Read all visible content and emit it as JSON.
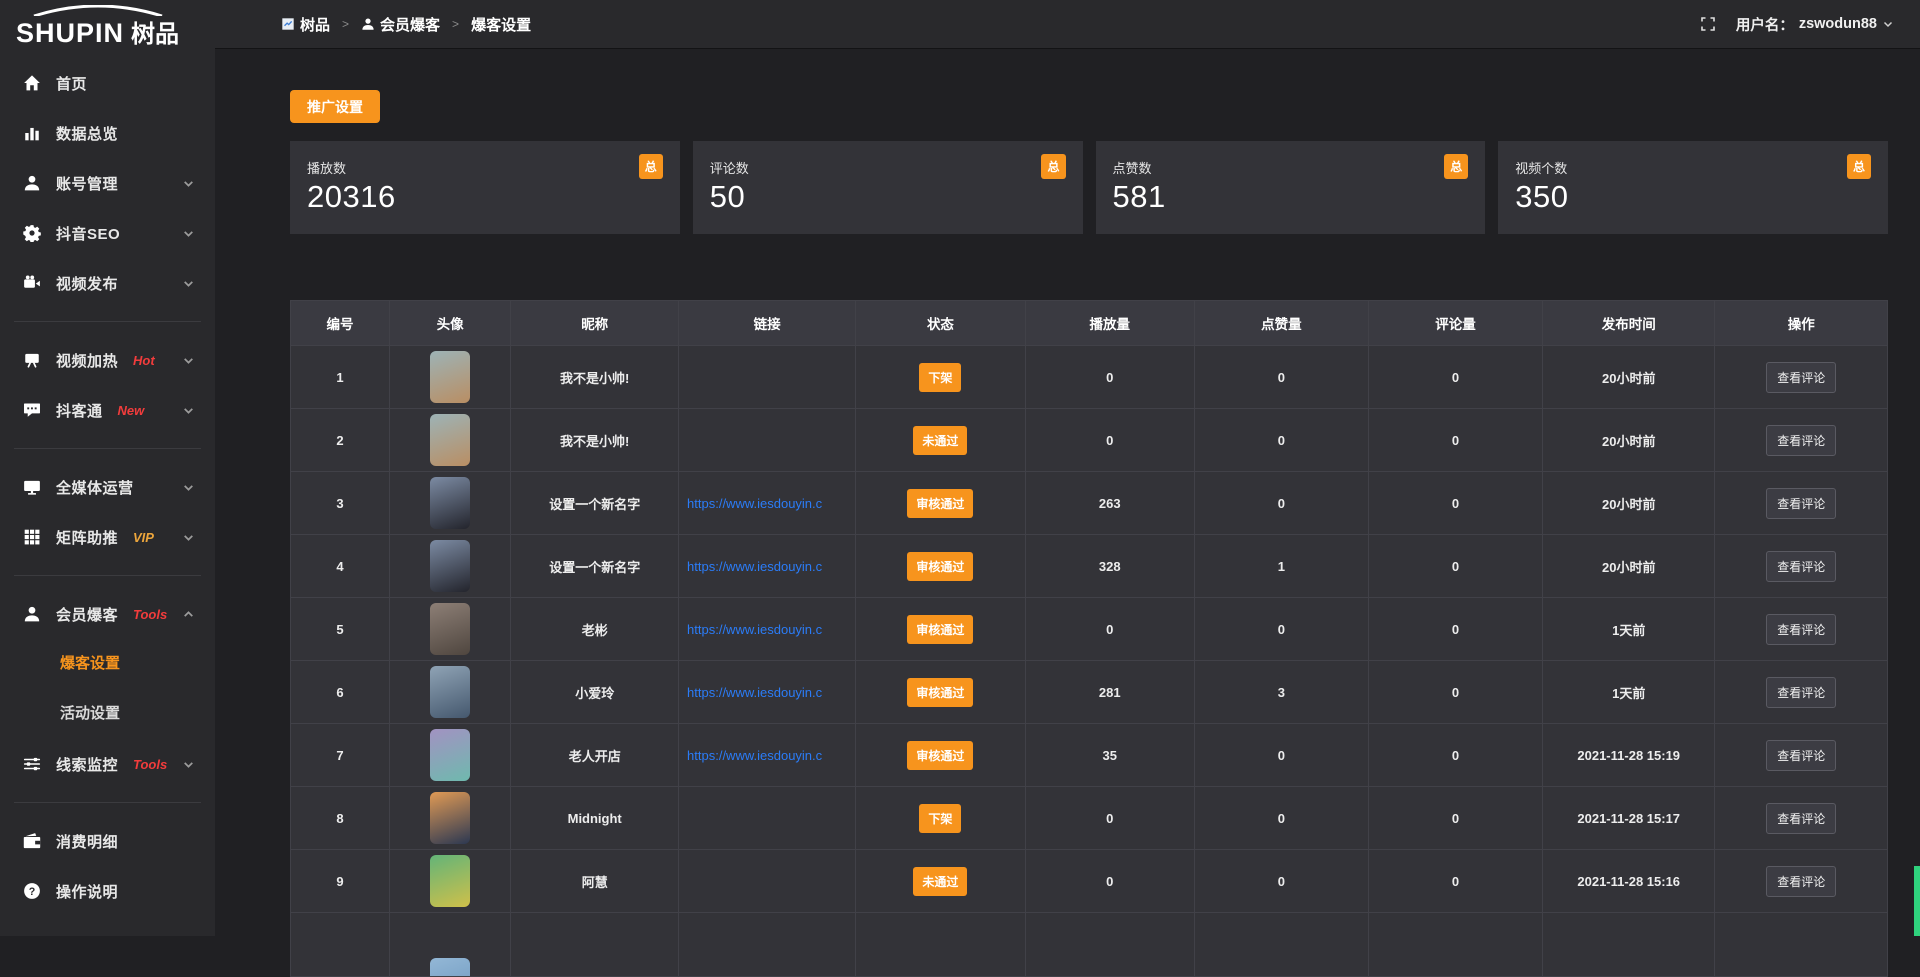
{
  "brand": {
    "logo_en": "SHUPIN",
    "logo_cn": "树品"
  },
  "topbar": {
    "breadcrumb": [
      {
        "icon": "dashboard-square-icon",
        "label": "树品"
      },
      {
        "icon": "user-icon",
        "label": "会员爆客"
      },
      {
        "icon": "",
        "label": "爆客设置"
      }
    ],
    "fullscreen_icon": "fullscreen-icon",
    "username_label": "用户名：",
    "username": "zswodun88"
  },
  "sidebar": {
    "items": [
      {
        "icon": "home-icon",
        "label": "首页"
      },
      {
        "icon": "bar-chart-icon",
        "label": "数据总览"
      },
      {
        "icon": "user-icon",
        "label": "账号管理",
        "chevron": "down"
      },
      {
        "icon": "gear-icon",
        "label": "抖音SEO",
        "chevron": "down"
      },
      {
        "icon": "video-camera-icon",
        "label": "视频发布",
        "chevron": "down"
      },
      {
        "divider": true
      },
      {
        "icon": "display-icon",
        "label": "视频加热",
        "tag": "Hot",
        "tag_color": "#f23c3c",
        "chevron": "down"
      },
      {
        "icon": "chat-icon",
        "label": "抖客通",
        "tag": "New",
        "tag_color": "#f23c3c",
        "chevron": "down"
      },
      {
        "divider": true
      },
      {
        "icon": "monitor-icon",
        "label": "全媒体运营",
        "chevron": "down"
      },
      {
        "icon": "grid-icon",
        "label": "矩阵助推",
        "tag": "VIP",
        "tag_color": "#eda63c",
        "chevron": "down"
      },
      {
        "divider": true
      },
      {
        "icon": "user-icon",
        "label": "会员爆客",
        "tag": "Tools",
        "tag_color": "#f23c3c",
        "chevron": "up",
        "children": [
          {
            "label": "爆客设置",
            "active": true
          },
          {
            "label": "活动设置",
            "active": false
          }
        ]
      },
      {
        "icon": "sliders-icon",
        "label": "线索监控",
        "tag": "Tools",
        "tag_color": "#f23c3c",
        "chevron": "down"
      },
      {
        "divider": true
      },
      {
        "icon": "wallet-icon",
        "label": "消费明细"
      },
      {
        "icon": "question-icon",
        "label": "操作说明"
      }
    ]
  },
  "main": {
    "promo_button": "推广设置",
    "stat_cards": [
      {
        "label": "播放数",
        "value": "20316",
        "badge": "总"
      },
      {
        "label": "评论数",
        "value": "50",
        "badge": "总"
      },
      {
        "label": "点赞数",
        "value": "581",
        "badge": "总"
      },
      {
        "label": "视频个数",
        "value": "350",
        "badge": "总"
      }
    ],
    "table": {
      "headers": [
        "编号",
        "头像",
        "昵称",
        "链接",
        "状态",
        "播放量",
        "点赞量",
        "评论量",
        "发布时间",
        "操作"
      ],
      "action_label": "查看评论",
      "rows": [
        {
          "id": "1",
          "nickname": "我不是小帅!",
          "link": "",
          "status": "下架",
          "plays": "0",
          "likes": "0",
          "comments": "0",
          "published": "20小时前",
          "avatar_colors": [
            "#9db3b6",
            "#b98e63"
          ]
        },
        {
          "id": "2",
          "nickname": "我不是小帅!",
          "link": "",
          "status": "未通过",
          "plays": "0",
          "likes": "0",
          "comments": "0",
          "published": "20小时前",
          "avatar_colors": [
            "#9db3b6",
            "#b98e63"
          ]
        },
        {
          "id": "3",
          "nickname": "设置一个新名字",
          "link": "https://www.iesdouyin.c",
          "status": "审核通过",
          "plays": "263",
          "likes": "0",
          "comments": "0",
          "published": "20小时前",
          "avatar_colors": [
            "#7c8ba3",
            "#23242c"
          ]
        },
        {
          "id": "4",
          "nickname": "设置一个新名字",
          "link": "https://www.iesdouyin.c",
          "status": "审核通过",
          "plays": "328",
          "likes": "1",
          "comments": "0",
          "published": "20小时前",
          "avatar_colors": [
            "#7c8ba3",
            "#23242c"
          ]
        },
        {
          "id": "5",
          "nickname": "老彬",
          "link": "https://www.iesdouyin.c",
          "status": "审核通过",
          "plays": "0",
          "likes": "0",
          "comments": "0",
          "published": "1天前",
          "avatar_colors": [
            "#8d7f76",
            "#4f463f"
          ]
        },
        {
          "id": "6",
          "nickname": "小爱玲",
          "link": "https://www.iesdouyin.c",
          "status": "审核通过",
          "plays": "281",
          "likes": "3",
          "comments": "0",
          "published": "1天前",
          "avatar_colors": [
            "#8fa3b5",
            "#45586e"
          ]
        },
        {
          "id": "7",
          "nickname": "老人开店",
          "link": "https://www.iesdouyin.c",
          "status": "审核通过",
          "plays": "35",
          "likes": "0",
          "comments": "0",
          "published": "2021-11-28 15:19",
          "avatar_colors": [
            "#a292c2",
            "#6fb9ae"
          ]
        },
        {
          "id": "8",
          "nickname": "Midnight",
          "link": "",
          "status": "下架",
          "plays": "0",
          "likes": "0",
          "comments": "0",
          "published": "2021-11-28 15:17",
          "avatar_colors": [
            "#e09a55",
            "#2c3852"
          ]
        },
        {
          "id": "9",
          "nickname": "阿慧",
          "link": "",
          "status": "未通过",
          "plays": "0",
          "likes": "0",
          "comments": "0",
          "published": "2021-11-28 15:16",
          "avatar_colors": [
            "#63b478",
            "#cfc04a"
          ]
        },
        {
          "partial": true,
          "avatar_colors": [
            "#93b7d6",
            "#7ea6c9"
          ]
        }
      ]
    }
  },
  "colors": {
    "accent_orange": "#f7941d",
    "tag_red": "#f23c3c",
    "tag_gold": "#eda63c",
    "link_blue": "#2b7cf7",
    "scrollbar_green": "#2fd27d"
  }
}
